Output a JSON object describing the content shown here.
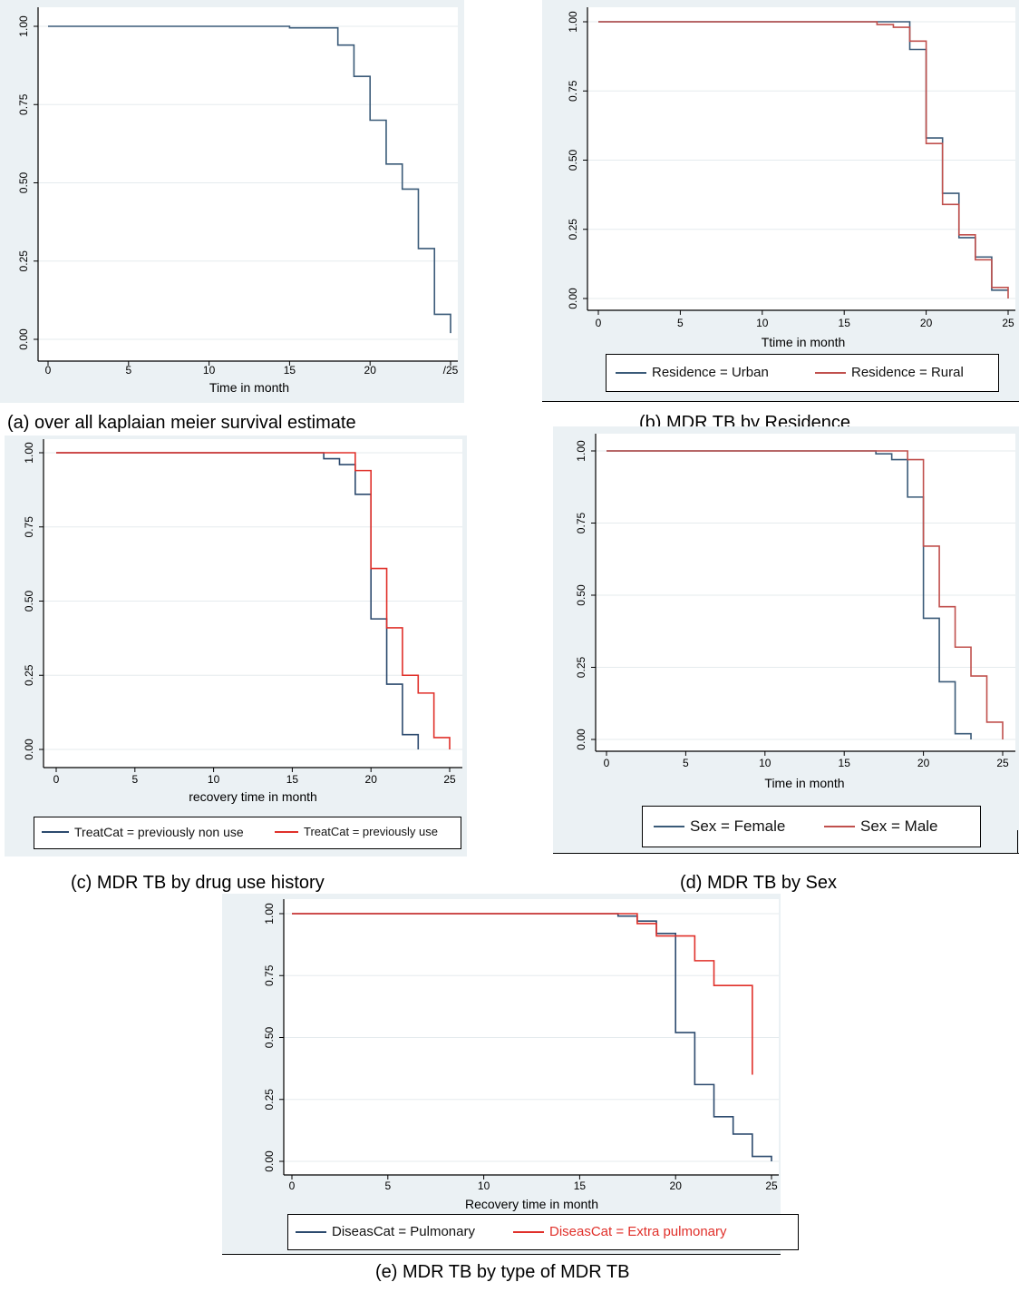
{
  "chart_data": [
    {
      "id": "a",
      "type": "line",
      "caption": "(a) over all kaplaian meier survival estimate",
      "xlabel": "Time in month",
      "ylabel": "",
      "xlim": [
        0,
        25
      ],
      "ylim": [
        0,
        1
      ],
      "xticks": [
        0,
        5,
        10,
        15,
        20,
        25
      ],
      "xtick_labels": [
        "0",
        "5",
        "10",
        "15",
        "20",
        "/25"
      ],
      "yticks": [
        0,
        0.25,
        0.5,
        0.75,
        1
      ],
      "ytick_labels": [
        "0.00",
        "0.25",
        "0.50",
        "0.75",
        "1.00"
      ],
      "legend": [],
      "series": [
        {
          "color": "#3a5a78",
          "x": [
            0,
            15,
            18,
            19,
            20,
            21,
            22,
            23,
            24,
            25
          ],
          "y": [
            1.0,
            0.995,
            0.94,
            0.84,
            0.7,
            0.56,
            0.48,
            0.29,
            0.08,
            0.02
          ]
        }
      ]
    },
    {
      "id": "b",
      "type": "line",
      "caption": "(b) MDR TB by Residence",
      "xlabel": "Ttime in month",
      "ylabel": "",
      "xlim": [
        0,
        25
      ],
      "ylim": [
        0,
        1
      ],
      "xticks": [
        0,
        5,
        10,
        15,
        20,
        25
      ],
      "xtick_labels": [
        "0",
        "5",
        "10",
        "15",
        "20",
        "25"
      ],
      "yticks": [
        0,
        0.25,
        0.5,
        0.75,
        1
      ],
      "ytick_labels": [
        "0.00",
        "0.25",
        "0.50",
        "0.75",
        "1.00"
      ],
      "legend": [
        "Residence = Urban",
        "Residence = Rural"
      ],
      "series": [
        {
          "name": "Residence = Urban",
          "color": "#3a5a78",
          "x": [
            0,
            17,
            19,
            20,
            21,
            22,
            23,
            24,
            25
          ],
          "y": [
            1.0,
            1.0,
            0.9,
            0.58,
            0.38,
            0.22,
            0.15,
            0.03,
            0.03
          ]
        },
        {
          "name": "Residence = Rural",
          "color": "#c0504d",
          "x": [
            0,
            17,
            18,
            19,
            20,
            21,
            22,
            23,
            24,
            25
          ],
          "y": [
            1.0,
            0.99,
            0.98,
            0.93,
            0.56,
            0.34,
            0.23,
            0.14,
            0.04,
            0.0
          ]
        }
      ]
    },
    {
      "id": "c",
      "type": "line",
      "caption": "(c) MDR TB by drug use history",
      "xlabel": "recovery time in month",
      "ylabel": "",
      "xlim": [
        0,
        25
      ],
      "ylim": [
        0,
        1
      ],
      "xticks": [
        0,
        5,
        10,
        15,
        20,
        25
      ],
      "xtick_labels": [
        "0",
        "5",
        "10",
        "15",
        "20",
        "25"
      ],
      "yticks": [
        0,
        0.25,
        0.5,
        0.75,
        1
      ],
      "ytick_labels": [
        "0.00",
        "0.25",
        "0.50",
        "0.75",
        "1.00"
      ],
      "legend": [
        "TreatCat = previously non use",
        "TreatCat = previously use"
      ],
      "series": [
        {
          "name": "TreatCat = previously non use",
          "color": "#2c4a6e",
          "x": [
            0,
            17,
            18,
            19,
            20,
            21,
            22,
            23
          ],
          "y": [
            1.0,
            0.98,
            0.96,
            0.86,
            0.44,
            0.22,
            0.05,
            0.0
          ]
        },
        {
          "name": "TreatCat = previously use",
          "color": "#e0302a",
          "x": [
            0,
            19,
            20,
            21,
            22,
            23,
            24,
            25
          ],
          "y": [
            1.0,
            0.94,
            0.61,
            0.41,
            0.25,
            0.19,
            0.04,
            0.0
          ]
        }
      ]
    },
    {
      "id": "d",
      "type": "line",
      "caption": "(d) MDR TB by Sex",
      "xlabel": "Time in month",
      "ylabel": "",
      "xlim": [
        0,
        25
      ],
      "ylim": [
        0,
        1
      ],
      "xticks": [
        0,
        5,
        10,
        15,
        20,
        25
      ],
      "xtick_labels": [
        "0",
        "5",
        "10",
        "15",
        "20",
        "25"
      ],
      "yticks": [
        0,
        0.25,
        0.5,
        0.75,
        1
      ],
      "ytick_labels": [
        "0.00",
        "0.25",
        "0.50",
        "0.75",
        "1.00"
      ],
      "legend": [
        "Sex = Female",
        "Sex = Male"
      ],
      "series": [
        {
          "name": "Sex = Female",
          "color": "#3a5a78",
          "x": [
            0,
            17,
            18,
            19,
            20,
            21,
            22,
            23
          ],
          "y": [
            1.0,
            0.99,
            0.97,
            0.84,
            0.42,
            0.2,
            0.02,
            0.0
          ]
        },
        {
          "name": "Sex = Male",
          "color": "#c0504d",
          "x": [
            0,
            19,
            20,
            21,
            22,
            23,
            24,
            25
          ],
          "y": [
            1.0,
            0.97,
            0.67,
            0.46,
            0.32,
            0.22,
            0.06,
            0.0
          ]
        }
      ]
    },
    {
      "id": "e",
      "type": "line",
      "caption": "(e) MDR TB by type of MDR TB",
      "xlabel": "Recovery  time in month",
      "ylabel": "",
      "xlim": [
        0,
        25
      ],
      "ylim": [
        0,
        1
      ],
      "xticks": [
        0,
        5,
        10,
        15,
        20,
        25
      ],
      "xtick_labels": [
        "0",
        "5",
        "10",
        "15",
        "20",
        "25"
      ],
      "yticks": [
        0,
        0.25,
        0.5,
        0.75,
        1
      ],
      "ytick_labels": [
        "0.00",
        "0.25",
        "0.50",
        "0.75",
        "1.00"
      ],
      "legend": [
        "DiseasCat = Pulmonary",
        "DiseasCat = Extra pulmonary"
      ],
      "series": [
        {
          "name": "DiseasCat = Pulmonary",
          "color": "#2c4a6e",
          "x": [
            0,
            17,
            18,
            19,
            20,
            21,
            22,
            23,
            24,
            25
          ],
          "y": [
            1.0,
            0.99,
            0.97,
            0.92,
            0.52,
            0.31,
            0.18,
            0.11,
            0.02,
            0.0
          ]
        },
        {
          "name": "DiseasCat = Extra pulmonary",
          "color": "#e0302a",
          "x": [
            0,
            18,
            19,
            21,
            22,
            24
          ],
          "y": [
            1.0,
            0.96,
            0.91,
            0.81,
            0.71,
            0.35
          ]
        }
      ]
    }
  ]
}
